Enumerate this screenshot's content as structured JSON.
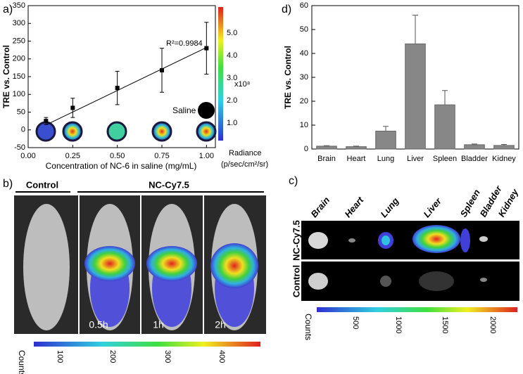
{
  "chart_data": [
    {
      "type": "line",
      "panel": "a)",
      "x": [
        0.1,
        0.25,
        0.5,
        0.75,
        1.0
      ],
      "values": [
        25,
        62,
        118,
        168,
        230
      ],
      "errors": [
        10,
        27,
        47,
        62,
        73
      ],
      "fit": {
        "x": [
          0.1,
          1.0
        ],
        "values": [
          14,
          232
        ]
      },
      "color": "#000000",
      "xlim": [
        0,
        1.05
      ],
      "ylim": [
        -50,
        350
      ],
      "xticks": [
        {
          "value": 0,
          "label": "0.00"
        },
        {
          "value": 0.25,
          "label": "0.25"
        },
        {
          "value": 0.5,
          "label": "0.50"
        },
        {
          "value": 0.75,
          "label": "0.75"
        },
        {
          "value": 1,
          "label": "1.00"
        }
      ],
      "yticks": [
        -50,
        0,
        50,
        100,
        150,
        200,
        250,
        300,
        350
      ],
      "xlabel": "Concentration of NC-6 in saline (mg/mL)",
      "ylabel": "TRE vs. Control",
      "annotation": "R²=0.9984",
      "saline_label": "Saline"
    },
    {
      "type": "bar",
      "panel": "d)",
      "categories": [
        "Brain",
        "Heart",
        "Lung",
        "Liver",
        "Spleen",
        "Bladder",
        "Kidney"
      ],
      "values": [
        1.2,
        1.0,
        7.5,
        44,
        18.5,
        1.8,
        1.5
      ],
      "errors": [
        0.2,
        0.2,
        2.0,
        12,
        6,
        0.3,
        0.4
      ],
      "color": "#878787",
      "ylim": [
        0,
        60
      ],
      "yticks": [
        0,
        10,
        20,
        30,
        40,
        50,
        60
      ],
      "ylabel": "TRE vs. Control"
    }
  ],
  "radiance_bar": {
    "label": "Radiance",
    "unit": "(p/sec/cm²/sr)",
    "multiplier": "x10⁸",
    "ticks": [
      "5.0",
      "4.0",
      "3.0",
      "2.0",
      "1.0"
    ]
  },
  "panel_b": {
    "label": "b)",
    "control": "Control",
    "treated": "NC-Cy7.5",
    "times": [
      "0.5h",
      "1h",
      "2h"
    ],
    "colorbar": {
      "label": "Counts",
      "ticks": [
        "100",
        "200",
        "300",
        "400"
      ]
    }
  },
  "panel_c": {
    "label": "c)",
    "organs": [
      "Brain",
      "Heart",
      "Lung",
      "Liver",
      "Spleen",
      "Bladder",
      "Kidney"
    ],
    "rows": [
      "NC-Cy7.5",
      "Control"
    ],
    "colorbar": {
      "label": "Counts",
      "ticks": [
        "500",
        "1000",
        "1500",
        "2000"
      ]
    }
  }
}
